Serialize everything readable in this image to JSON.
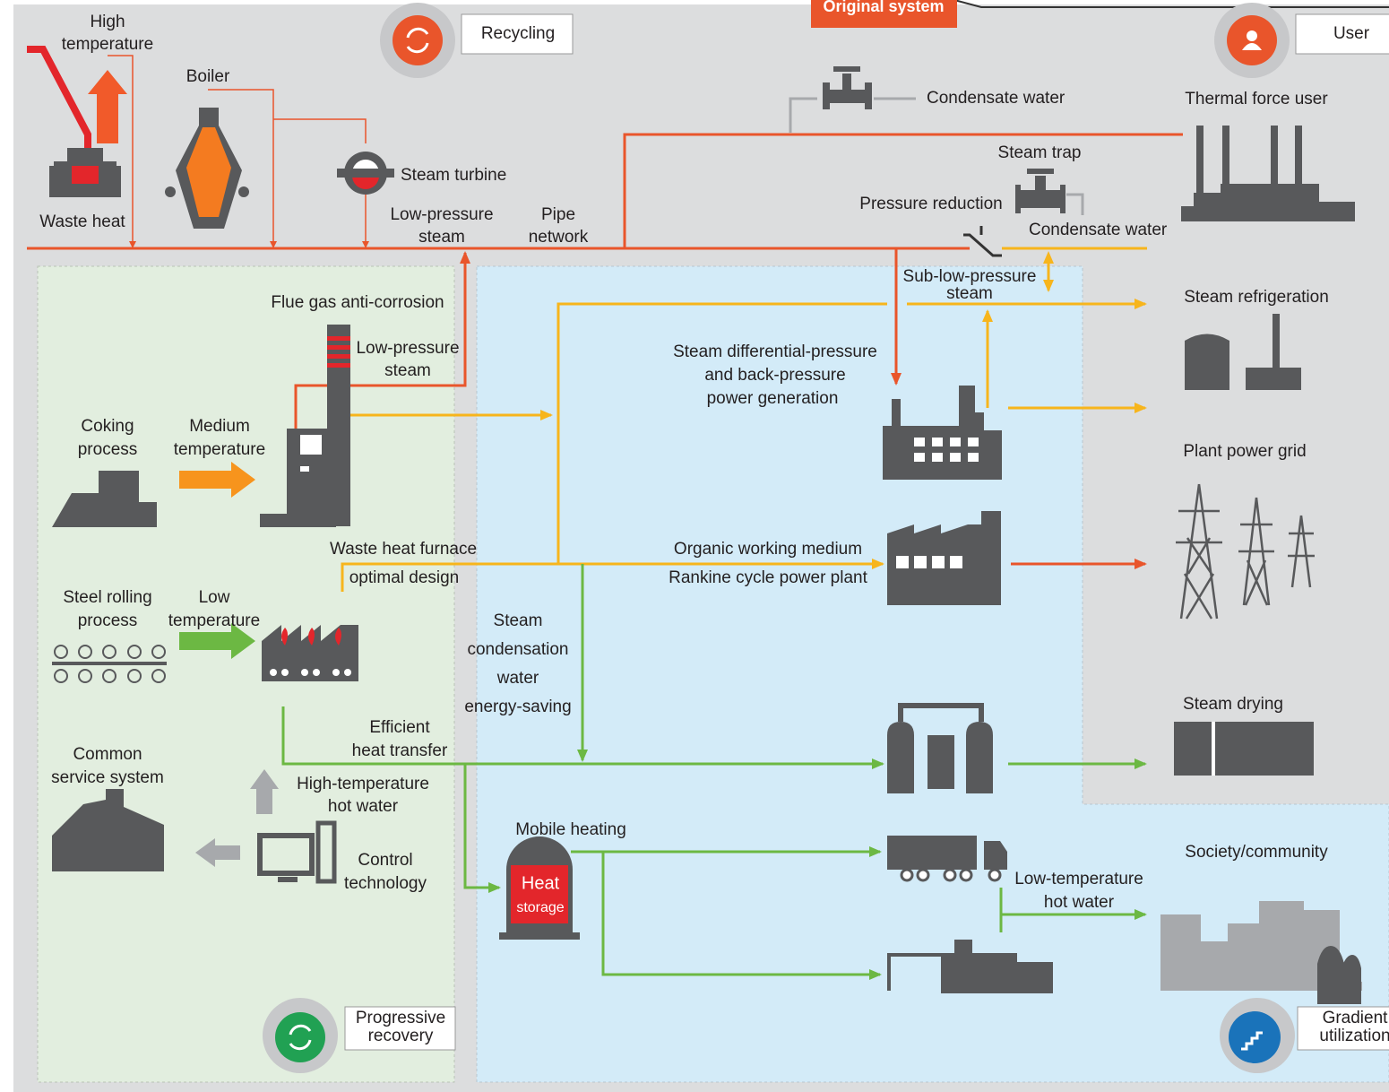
{
  "banner": "Original system",
  "badges": {
    "recycling": "Recycling",
    "user": "User",
    "progressive": [
      "Progressive",
      "recovery"
    ],
    "gradient": [
      "Gradient",
      "utilization"
    ]
  },
  "heat_storage": [
    "Heat",
    "storage"
  ],
  "labels": [
    [
      "High",
      "temperature"
    ],
    [
      "Boiler"
    ],
    [
      "Waste heat"
    ],
    [
      "Steam turbine"
    ],
    [
      "Low-pressure",
      "steam"
    ],
    [
      "Pipe",
      "network"
    ],
    [
      "Condensate water"
    ],
    [
      "Thermal force user"
    ],
    [
      "Steam trap"
    ],
    [
      "Pressure reduction"
    ],
    [
      "Condensate water"
    ],
    [
      "Sub-low-pressure",
      "steam"
    ],
    [
      "Flue gas anti-corrosion"
    ],
    [
      "Low-pressure",
      "steam"
    ],
    [
      "Steam refrigeration"
    ],
    [
      "Steam differential-pressure",
      "and back-pressure",
      "power generation"
    ],
    [
      "Coking",
      "process"
    ],
    [
      "Medium",
      "temperature"
    ],
    [
      "Plant power grid"
    ],
    [
      "Waste heat furnace",
      "optimal design"
    ],
    [
      "Organic working medium",
      "Rankine cycle power plant"
    ],
    [
      "Steel rolling",
      "process"
    ],
    [
      "Low",
      "temperature"
    ],
    [
      "Steam",
      "condensation",
      "water",
      "energy-saving"
    ],
    [
      "Efficient",
      "heat transfer"
    ],
    [
      "Steam drying"
    ],
    [
      "Common",
      "service system"
    ],
    [
      "High-temperature",
      "hot water"
    ],
    [
      "Control",
      "technology"
    ],
    [
      "Mobile heating"
    ],
    [
      "Society/community"
    ],
    [
      "Low-temperature",
      "hot water"
    ]
  ]
}
